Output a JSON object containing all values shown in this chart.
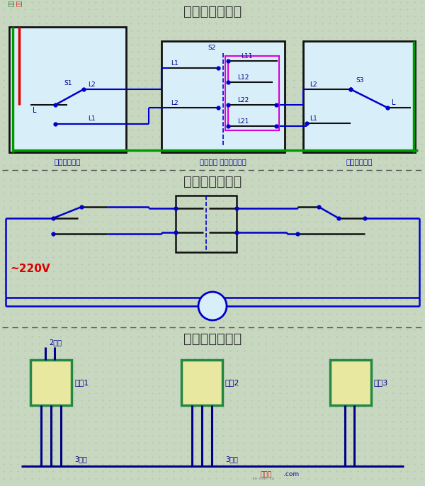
{
  "title1": "三控开关接线图",
  "title2": "三控开关原理图",
  "title3": "三控开关布线图",
  "label_dankai": "单开双控开关",
  "label_zhongtu": "中途开关 （三控开关）",
  "label_dankai2": "单开双控开关",
  "label_220v": "~220V",
  "label_2gen": "2根线",
  "label_3gen1": "3根线",
  "label_3gen2": "3根线",
  "label_kaiguan1": "开关1",
  "label_kaiguan2": "开关2",
  "label_kaiguan3": "开关3",
  "label_xiangxian": "相线",
  "label_huoxian": "火线",
  "label_jiexiantu": "接线图",
  "label_com": ".com",
  "label_jiexiantu2": "jie xian tu",
  "bg_color": "#c8d8c0",
  "panel_bg": "#d8eef8",
  "blue": "#0000cc",
  "green": "#009900",
  "red": "#dd0000",
  "magenta": "#dd00dd",
  "black": "#111111",
  "dark_blue": "#00008b",
  "switch_fill": "#e8e8a0",
  "switch_border": "#228844",
  "grid_dot": "#a8bca8",
  "divider": "#555555",
  "text_dark": "#333333",
  "text_blue_label": "#0000aa"
}
